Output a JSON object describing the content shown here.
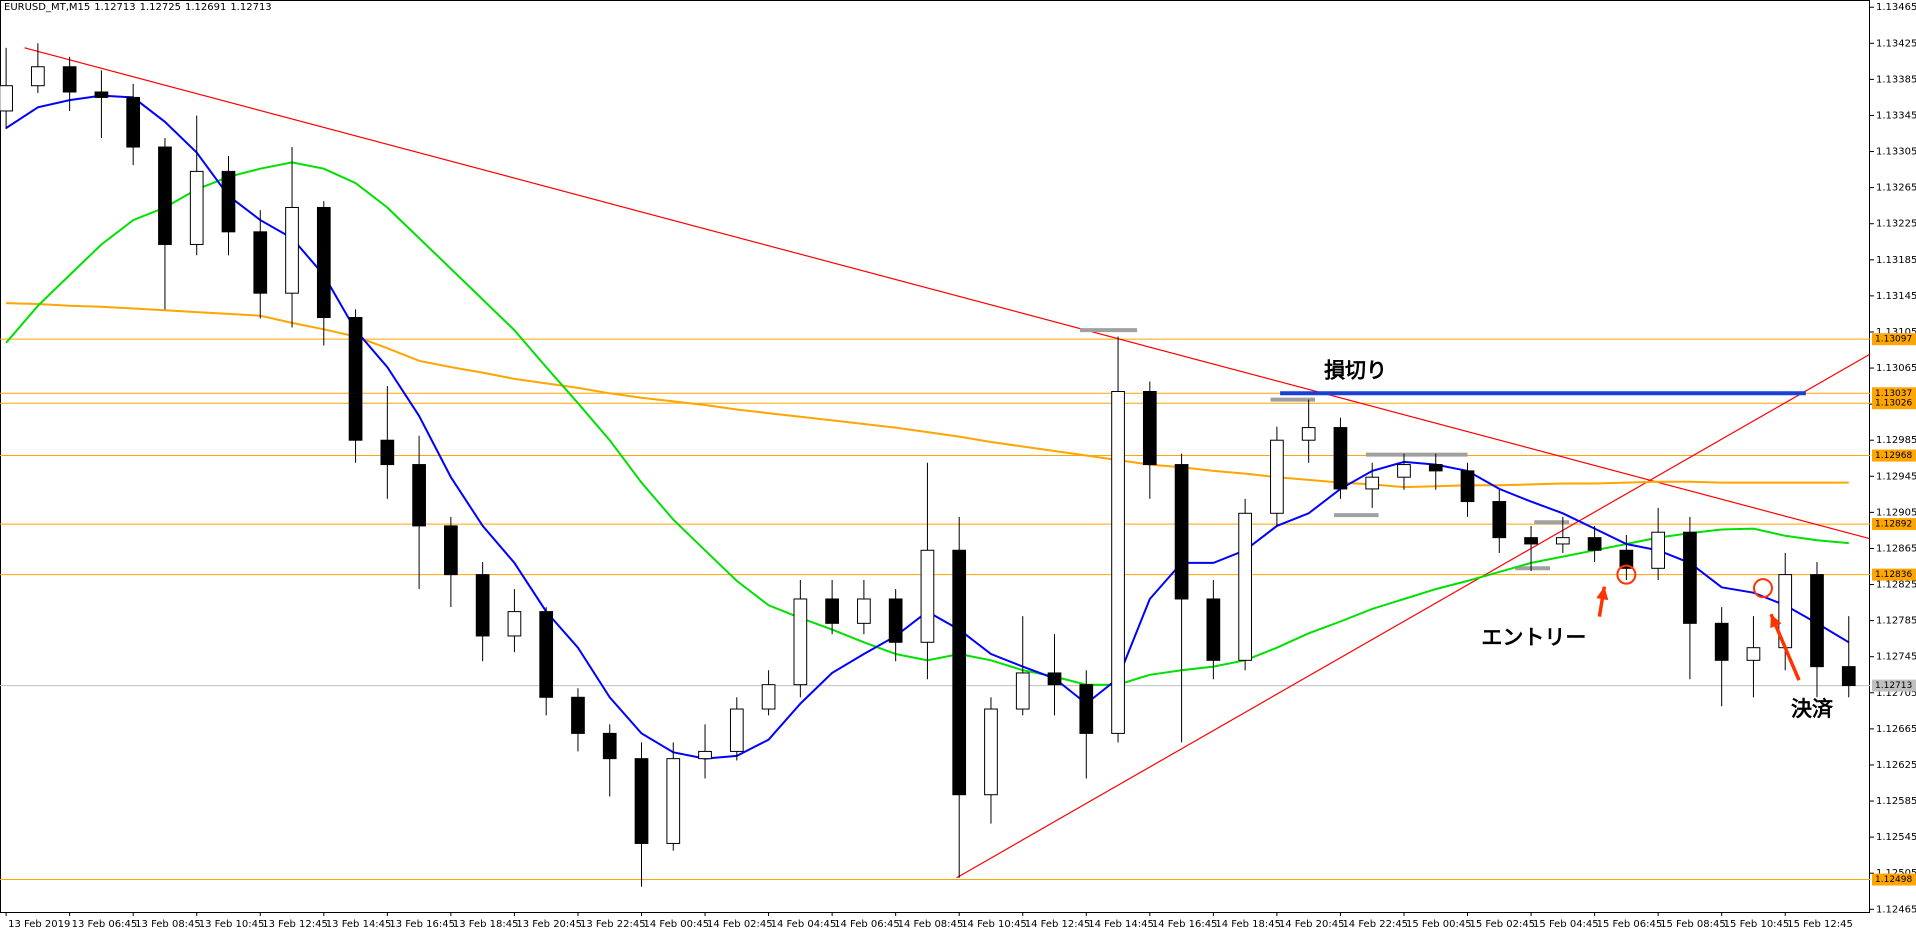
{
  "header": {
    "symbol": "EURUSD_MT,M15",
    "ohlc": [
      1.12713,
      1.12725,
      1.12691,
      1.12713
    ]
  },
  "chart_data": {
    "type": "candlestick",
    "categories": [
      "13 Feb 2019",
      null,
      "13 Feb 06:45",
      null,
      "13 Feb 08:45",
      null,
      "13 Feb 10:45",
      null,
      "13 Feb 12:45",
      null,
      "13 Feb 14:45",
      null,
      "13 Feb 16:45",
      null,
      "13 Feb 18:45",
      null,
      "13 Feb 20:45",
      null,
      "13 Feb 22:45",
      null,
      "14 Feb 00:45",
      null,
      "14 Feb 02:45",
      null,
      "14 Feb 04:45",
      null,
      "14 Feb 06:45",
      null,
      "14 Feb 08:45",
      null,
      "14 Feb 10:45",
      null,
      "14 Feb 12:45",
      null,
      "14 Feb 14:45",
      null,
      "14 Feb 16:45",
      null,
      "14 Feb 18:45",
      null,
      "14 Feb 20:45",
      null,
      "14 Feb 22:45",
      null,
      "15 Feb 00:45",
      null,
      "15 Feb 02:45",
      null,
      "15 Feb 04:45",
      null,
      "15 Feb 06:45",
      null,
      "15 Feb 08:45",
      null,
      "15 Feb 10:45",
      null,
      "15 Feb 12:45",
      null,
      null
    ],
    "open": [
      1.1335,
      1.13378,
      1.13399,
      1.13371,
      1.13365,
      1.1331,
      1.13202,
      1.13283,
      1.13216,
      1.13148,
      1.13243,
      1.13121,
      1.12985,
      1.12958,
      1.1289,
      1.12836,
      1.12768,
      1.12795,
      1.127,
      1.1266,
      1.12632,
      1.12538,
      1.12632,
      1.1264,
      1.12687,
      1.12714,
      1.12809,
      1.12782,
      1.12809,
      1.12761,
      1.12863,
      1.12592,
      1.12687,
      1.12727,
      1.12714,
      1.1266,
      1.13039,
      1.12958,
      1.12809,
      1.12741,
      1.12904,
      1.12985,
      1.12999,
      1.12931,
      1.12944,
      1.12958,
      1.12951,
      1.12917,
      1.12877,
      1.1287,
      1.12877,
      1.12863,
      1.12843,
      1.12883,
      1.12782,
      1.12741,
      1.12755,
      1.12836,
      1.12734
    ],
    "high": [
      1.1342,
      1.13425,
      1.1341,
      1.13395,
      1.1338,
      1.1332,
      1.13345,
      1.133,
      1.1324,
      1.1331,
      1.1325,
      1.1313,
      1.13045,
      1.1299,
      1.129,
      1.1285,
      1.1282,
      1.128,
      1.1271,
      1.1267,
      1.1265,
      1.1265,
      1.1267,
      1.127,
      1.1273,
      1.1283,
      1.1283,
      1.1283,
      1.1282,
      1.1296,
      1.129,
      1.127,
      1.1279,
      1.1277,
      1.1273,
      1.131,
      1.1305,
      1.1297,
      1.1283,
      1.1292,
      1.13,
      1.1303,
      1.1301,
      1.1296,
      1.1297,
      1.1297,
      1.1296,
      1.1293,
      1.1289,
      1.129,
      1.1289,
      1.1288,
      1.1291,
      1.129,
      1.128,
      1.1279,
      1.1286,
      1.1285,
      1.1279
    ],
    "low": [
      1.1333,
      1.1337,
      1.1335,
      1.1332,
      1.1329,
      1.1313,
      1.1319,
      1.1319,
      1.1312,
      1.1311,
      1.1309,
      1.1296,
      1.1292,
      1.1282,
      1.128,
      1.1274,
      1.1275,
      1.1268,
      1.1264,
      1.1259,
      1.1249,
      1.1253,
      1.1261,
      1.1263,
      1.1268,
      1.127,
      1.1277,
      1.1277,
      1.1274,
      1.1272,
      1.125,
      1.1256,
      1.1268,
      1.1268,
      1.1261,
      1.1265,
      1.1292,
      1.1265,
      1.1272,
      1.1273,
      1.1289,
      1.1296,
      1.1292,
      1.1291,
      1.1293,
      1.1293,
      1.129,
      1.1286,
      1.1284,
      1.1286,
      1.1285,
      1.1283,
      1.1283,
      1.1272,
      1.1269,
      1.127,
      1.1273,
      1.127,
      1.127
    ],
    "close": [
      1.13378,
      1.13399,
      1.13371,
      1.13365,
      1.1331,
      1.13202,
      1.13283,
      1.13216,
      1.13148,
      1.13243,
      1.13121,
      1.12985,
      1.12958,
      1.1289,
      1.12836,
      1.12768,
      1.12795,
      1.127,
      1.1266,
      1.12632,
      1.12538,
      1.12632,
      1.1264,
      1.12687,
      1.12714,
      1.12809,
      1.12782,
      1.12809,
      1.12761,
      1.12863,
      1.12592,
      1.12687,
      1.12727,
      1.12714,
      1.1266,
      1.13039,
      1.12958,
      1.12809,
      1.12741,
      1.12904,
      1.12985,
      1.12999,
      1.12931,
      1.12944,
      1.12958,
      1.12951,
      1.12917,
      1.12877,
      1.1287,
      1.12877,
      1.12863,
      1.12843,
      1.12883,
      1.12782,
      1.12741,
      1.12755,
      1.12836,
      1.12734,
      1.12713
    ],
    "up_color": "#ffffff",
    "down_color": "#000000",
    "candle_outline": "#000000",
    "series": [
      {
        "color": "#ffa500",
        "values": [
          1.13137,
          1.13136,
          1.13134,
          1.13133,
          1.13131,
          1.13129,
          1.13127,
          1.13125,
          1.13123,
          1.13115,
          1.13108,
          1.131,
          1.13087,
          1.13073,
          1.13066,
          1.1306,
          1.13053,
          1.13048,
          1.13043,
          1.13037,
          1.13032,
          1.13028,
          1.13024,
          1.13019,
          1.13015,
          1.13011,
          1.13007,
          1.13003,
          1.12999,
          1.12994,
          1.12989,
          1.12983,
          1.12978,
          1.12973,
          1.12968,
          1.12963,
          1.12958,
          1.12955,
          1.12951,
          1.12948,
          1.12944,
          1.12941,
          1.12938,
          1.12936,
          1.12933,
          1.12934,
          1.12935,
          1.12935,
          1.12936,
          1.12937,
          1.12937,
          1.12938,
          1.12939,
          1.12939,
          1.12938,
          1.12938,
          1.12938,
          1.12938,
          1.12938
        ]
      },
      {
        "color": "#00e000",
        "values": [
          1.13093,
          1.13134,
          1.13168,
          1.13202,
          1.13229,
          1.13243,
          1.13263,
          1.13277,
          1.13286,
          1.13293,
          1.13286,
          1.1327,
          1.13243,
          1.13209,
          1.13175,
          1.13141,
          1.13107,
          1.13066,
          1.13026,
          1.12985,
          1.12938,
          1.12897,
          1.12863,
          1.12829,
          1.12802,
          1.12788,
          1.12775,
          1.12761,
          1.12748,
          1.12741,
          1.12748,
          1.12741,
          1.1273,
          1.12723,
          1.12714,
          1.12714,
          1.12725,
          1.1273,
          1.12734,
          1.12741,
          1.12755,
          1.12771,
          1.12784,
          1.12798,
          1.12809,
          1.1282,
          1.12829,
          1.12839,
          1.12849,
          1.12856,
          1.12863,
          1.1287,
          1.12877,
          1.12882,
          1.12886,
          1.12887,
          1.12879,
          1.12874,
          1.12871
        ]
      },
      {
        "color": "#0000ff",
        "values": [
          1.13331,
          1.13354,
          1.13362,
          1.13367,
          1.13365,
          1.13338,
          1.13304,
          1.13256,
          1.13229,
          1.13209,
          1.13168,
          1.13107,
          1.13066,
          1.13012,
          1.12944,
          1.1289,
          1.12849,
          1.12795,
          1.12755,
          1.127,
          1.1266,
          1.12639,
          1.12632,
          1.12635,
          1.12653,
          1.12693,
          1.12727,
          1.12748,
          1.12768,
          1.12795,
          1.12775,
          1.12748,
          1.12734,
          1.12721,
          1.12693,
          1.12721,
          1.12809,
          1.12849,
          1.12849,
          1.12863,
          1.1289,
          1.12904,
          1.12931,
          1.12951,
          1.12961,
          1.12958,
          1.12951,
          1.12931,
          1.12917,
          1.12904,
          1.12887,
          1.1287,
          1.12863,
          1.12849,
          1.12822,
          1.12816,
          1.12802,
          1.12782,
          1.12761
        ]
      }
    ],
    "ylim": [
      1.12462,
      1.13473
    ],
    "yticks": [
      1.13465,
      1.13425,
      1.13385,
      1.13345,
      1.13305,
      1.13265,
      1.13225,
      1.13185,
      1.13145,
      1.13105,
      1.13065,
      1.13025,
      1.12985,
      1.12945,
      1.12905,
      1.12865,
      1.12825,
      1.12785,
      1.12745,
      1.12705,
      1.12665,
      1.12625,
      1.12585,
      1.12545,
      1.12505,
      1.12465
    ],
    "levels": [
      {
        "value": 1.13097,
        "color": "#ffa500"
      },
      {
        "value": 1.13037,
        "color": "#ffa500"
      },
      {
        "value": 1.13026,
        "color": "#ffa500"
      },
      {
        "value": 1.12968,
        "color": "#ffa500"
      },
      {
        "value": 1.12892,
        "color": "#ffa500"
      },
      {
        "value": 1.12836,
        "color": "#ffa500"
      },
      {
        "value": 1.12498,
        "color": "#ffa500"
      }
    ],
    "current_price": {
      "value": 1.12713,
      "color": "#c0c0c0"
    },
    "trendlines": [
      {
        "x": [
          0.58,
          58.65
        ],
        "y": [
          1.1342,
          1.12876
        ],
        "color": "#ff0000"
      },
      {
        "x": [
          29.92,
          58.65
        ],
        "y": [
          1.125,
          1.1308
        ],
        "color": "#ff0000"
      }
    ],
    "stop_loss": {
      "label": "損切り",
      "value": 1.13037,
      "x": [
        40.1,
        56.65
      ],
      "color": "#1a3fd6"
    },
    "markers": [
      {
        "x": [
          33.8,
          35.6
        ],
        "value": 1.13107
      },
      {
        "x": [
          39.8,
          41.2
        ],
        "value": 1.1303
      },
      {
        "x": [
          42.8,
          46.0
        ],
        "value": 1.12969
      },
      {
        "x": [
          41.8,
          43.2
        ],
        "value": 1.12902
      },
      {
        "x": [
          48.1,
          49.2
        ],
        "value": 1.12894
      },
      {
        "x": [
          47.5,
          48.6
        ],
        "value": 1.12843
      }
    ],
    "marker_color": "#a0a0a0",
    "annotations": [
      {
        "text": "エントリー",
        "x": 51.0,
        "value": 1.12836,
        "color": "#ff3300"
      },
      {
        "text": "決済",
        "x": 55.3,
        "value": 1.12821,
        "color": "#ff3300"
      }
    ]
  }
}
